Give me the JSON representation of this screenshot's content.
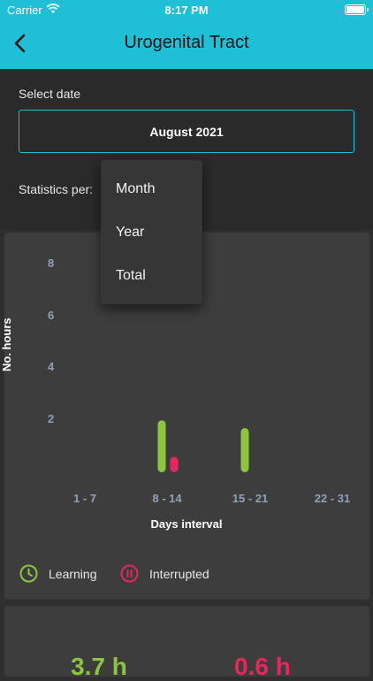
{
  "status": {
    "carrier": "Carrier",
    "time": "8:17 PM"
  },
  "header": {
    "title": "Urogenital Tract"
  },
  "date_section": {
    "label": "Select date",
    "value": "August 2021"
  },
  "stats": {
    "label": "Statistics per:"
  },
  "dropdown": {
    "options": [
      "Month",
      "Year",
      "Total"
    ]
  },
  "colors": {
    "accent": "#1fbfd6",
    "learning": "#8cc63f",
    "interrupted": "#e8265e"
  },
  "chart_data": {
    "type": "bar",
    "ylabel": "No. hours",
    "xlabel": "Days interval",
    "categories": [
      "1 - 7",
      "8 - 14",
      "15 - 21",
      "22 - 31"
    ],
    "y_ticks": [
      "2",
      "4",
      "6",
      "8"
    ],
    "ylim": [
      0,
      8
    ],
    "series": [
      {
        "name": "Learning",
        "color": "#8cc63f",
        "values": [
          0,
          2.0,
          1.7,
          0
        ]
      },
      {
        "name": "Interrupted",
        "color": "#e8265e",
        "values": [
          0,
          0.6,
          0,
          0
        ]
      }
    ]
  },
  "legend": {
    "learning": "Learning",
    "interrupted": "Interrupted"
  },
  "summary": {
    "learning": "3.7 h",
    "interrupted": "0.6 h"
  }
}
